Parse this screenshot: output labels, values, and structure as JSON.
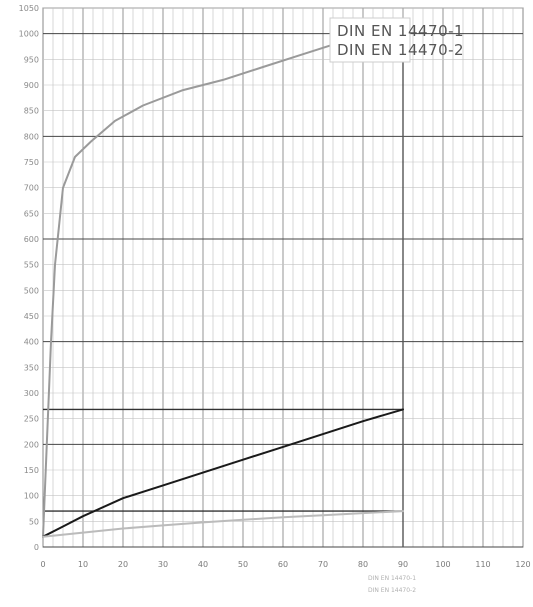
{
  "chart_data": {
    "type": "line",
    "legend": [
      "DIN EN 14470-1",
      "DIN EN 14470-2"
    ],
    "legend_placement": "top-right",
    "y_ticks": [
      "0",
      "50",
      "100",
      "150",
      "200",
      "250",
      "300",
      "350",
      "400",
      "450",
      "500",
      "550",
      "600",
      "650",
      "700",
      "750",
      "800",
      "850",
      "900",
      "950",
      "1000",
      "1050"
    ],
    "x_ticks": [
      "0",
      "10",
      "20",
      "30",
      "40",
      "50",
      "60",
      "70",
      "80",
      "90",
      "100",
      "110",
      "120"
    ],
    "xlim": [
      0,
      120
    ],
    "ylim": [
      0,
      1050
    ],
    "grid": true,
    "series": [
      {
        "color": "#9a9a9a",
        "points": [
          [
            0,
            20
          ],
          [
            2,
            400
          ],
          [
            3,
            550
          ],
          [
            5,
            700
          ],
          [
            8,
            760
          ],
          [
            12,
            790
          ],
          [
            18,
            830
          ],
          [
            25,
            860
          ],
          [
            35,
            890
          ],
          [
            45,
            910
          ],
          [
            55,
            935
          ],
          [
            65,
            960
          ],
          [
            75,
            985
          ],
          [
            85,
            1010
          ],
          [
            90,
            1020
          ]
        ]
      },
      {
        "color": "#1a1a1a",
        "points": [
          [
            0,
            20
          ],
          [
            5,
            40
          ],
          [
            10,
            60
          ],
          [
            20,
            95
          ],
          [
            30,
            120
          ],
          [
            40,
            145
          ],
          [
            50,
            170
          ],
          [
            60,
            195
          ],
          [
            70,
            220
          ],
          [
            80,
            245
          ],
          [
            90,
            268
          ]
        ]
      },
      {
        "color": "#bbbbbb",
        "points": [
          [
            0,
            20
          ],
          [
            10,
            28
          ],
          [
            20,
            36
          ],
          [
            30,
            42
          ],
          [
            40,
            48
          ],
          [
            50,
            53
          ],
          [
            60,
            58
          ],
          [
            70,
            62
          ],
          [
            80,
            66
          ],
          [
            90,
            70
          ]
        ]
      }
    ],
    "reference_lines": [
      {
        "y": 268,
        "x_end": 90
      },
      {
        "y": 70,
        "x_end": 90
      }
    ],
    "vertical_markers": [
      90
    ],
    "footer_labels": [
      "DIN EN 14470-1",
      "DIN EN 14470-2"
    ]
  }
}
